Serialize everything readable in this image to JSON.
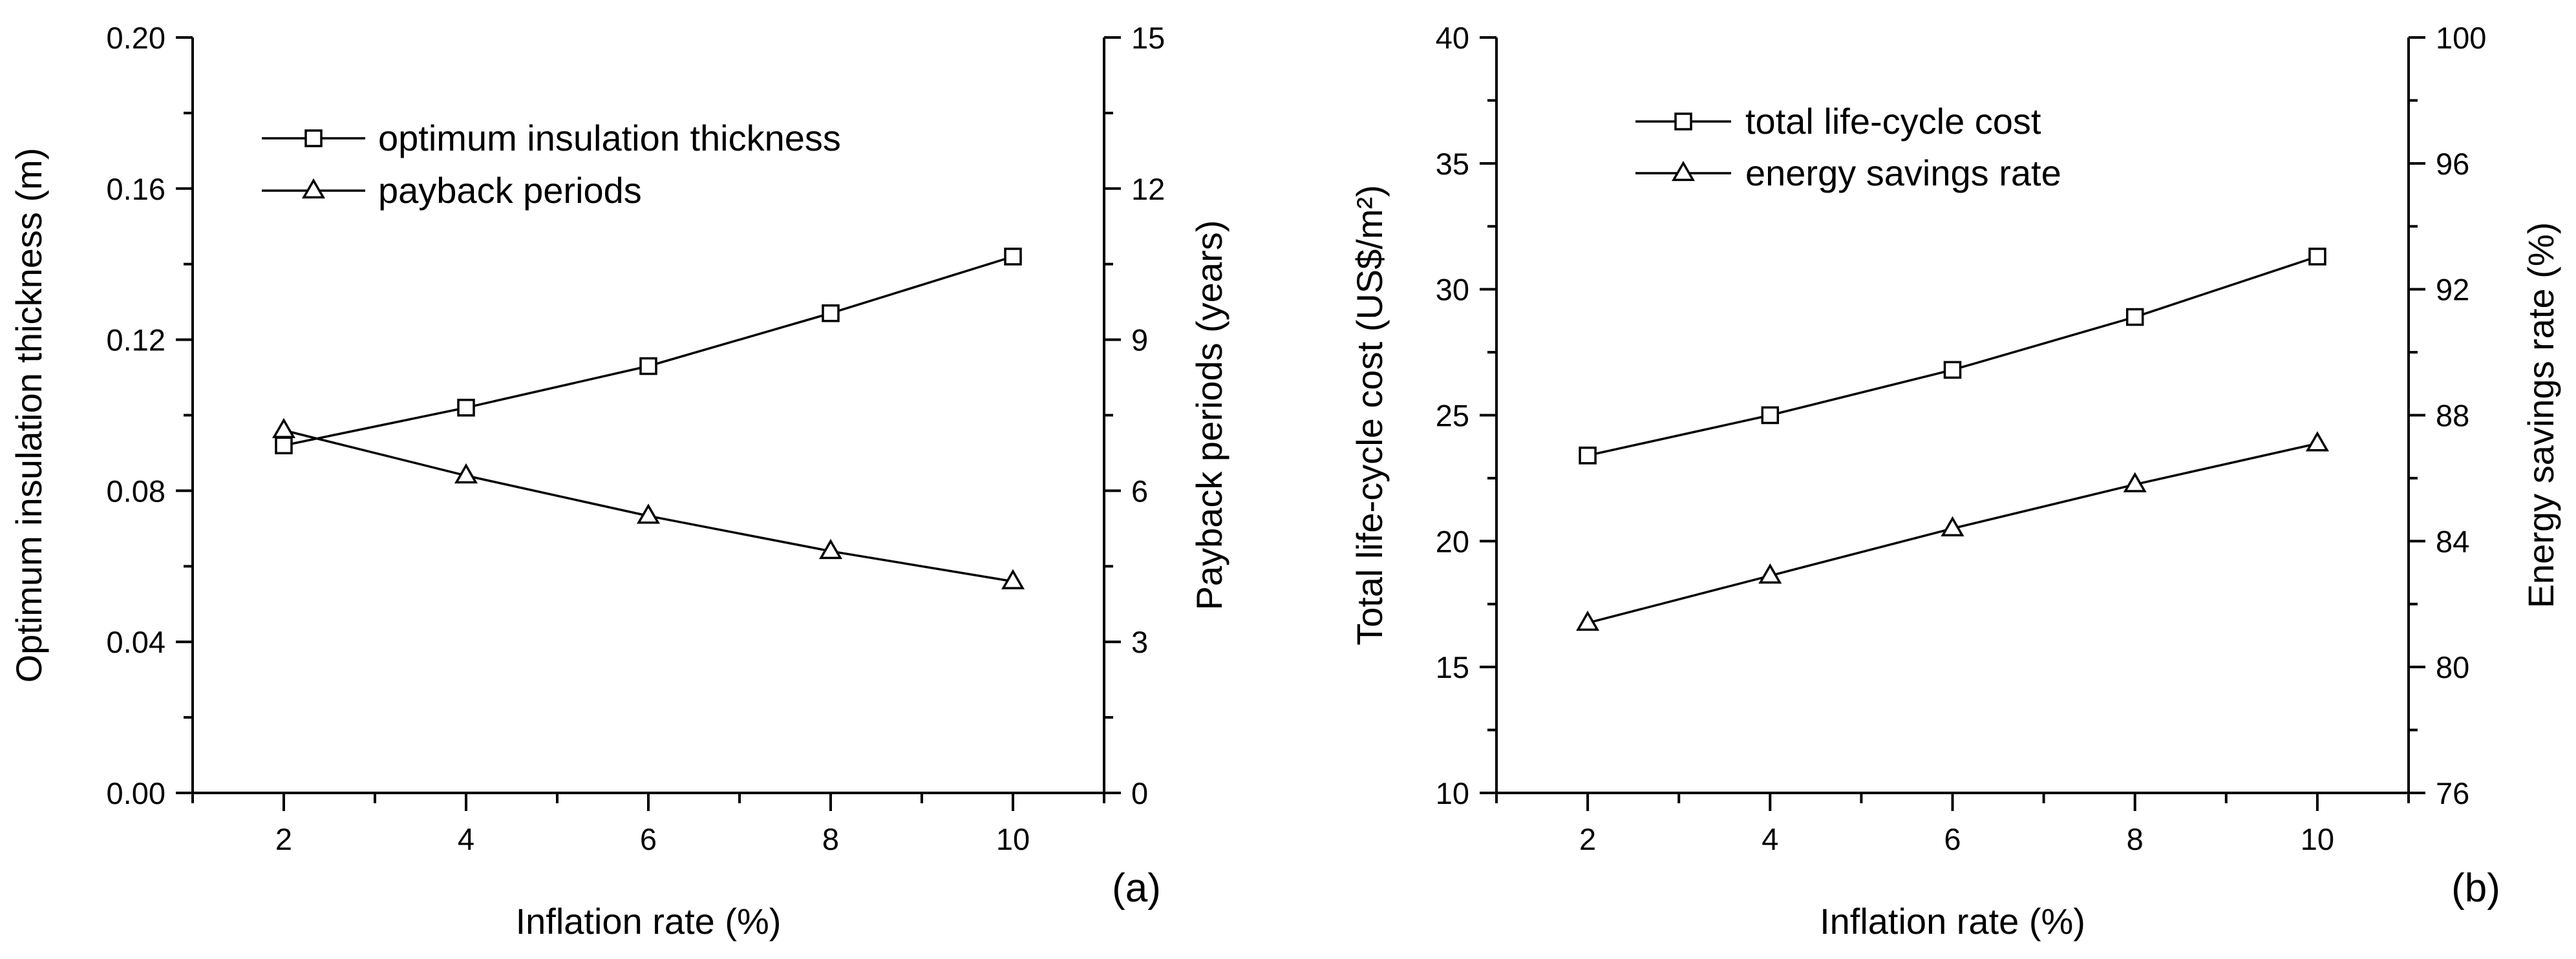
{
  "chart_data": [
    {
      "panel": "(a)",
      "type": "line",
      "xlabel": "Inflation rate (%)",
      "xlim": [
        1,
        11
      ],
      "x_ticks": [
        2,
        4,
        6,
        8,
        10
      ],
      "ylabel_left": "Optimum insulation thickness (m)",
      "ylim_left": [
        0,
        0.2
      ],
      "y_ticks_left": [
        "0.00",
        "0.04",
        "0.08",
        "0.12",
        "0.16",
        "0.20"
      ],
      "ylabel_right": "Payback periods (years)",
      "ylim_right": [
        0,
        15
      ],
      "y_ticks_right": [
        "0",
        "3",
        "6",
        "9",
        "12",
        "15"
      ],
      "legend_position": "top-left",
      "grid": false,
      "series": [
        {
          "name": "optimum insulation thickness",
          "marker": "square",
          "axis": "left",
          "x": [
            2,
            4,
            6,
            8,
            10
          ],
          "values": [
            0.092,
            0.102,
            0.113,
            0.127,
            0.142
          ]
        },
        {
          "name": "payback periods",
          "marker": "triangle",
          "axis": "right",
          "x": [
            2,
            4,
            6,
            8,
            10
          ],
          "values": [
            7.2,
            6.3,
            5.5,
            4.8,
            4.2
          ]
        }
      ]
    },
    {
      "panel": "(b)",
      "type": "line",
      "xlabel": "Inflation rate (%)",
      "xlim": [
        1,
        11
      ],
      "x_ticks": [
        2,
        4,
        6,
        8,
        10
      ],
      "ylabel_left": "Total life-cycle cost (US$/m²)",
      "ylim_left": [
        10,
        40
      ],
      "y_ticks_left": [
        "10",
        "15",
        "20",
        "25",
        "30",
        "35",
        "40"
      ],
      "ylabel_right": "Energy savings rate (%)",
      "ylim_right": [
        76,
        100
      ],
      "y_ticks_right": [
        "76",
        "80",
        "84",
        "88",
        "92",
        "96",
        "100"
      ],
      "legend_position": "top-left",
      "grid": false,
      "series": [
        {
          "name": "total life-cycle cost",
          "marker": "square",
          "axis": "left",
          "x": [
            2,
            4,
            6,
            8,
            10
          ],
          "values": [
            23.4,
            25.0,
            26.8,
            28.9,
            31.3
          ]
        },
        {
          "name": "energy savings rate",
          "marker": "triangle",
          "axis": "right",
          "x": [
            2,
            4,
            6,
            8,
            10
          ],
          "values": [
            81.4,
            82.9,
            84.4,
            85.8,
            87.1
          ]
        }
      ]
    }
  ]
}
